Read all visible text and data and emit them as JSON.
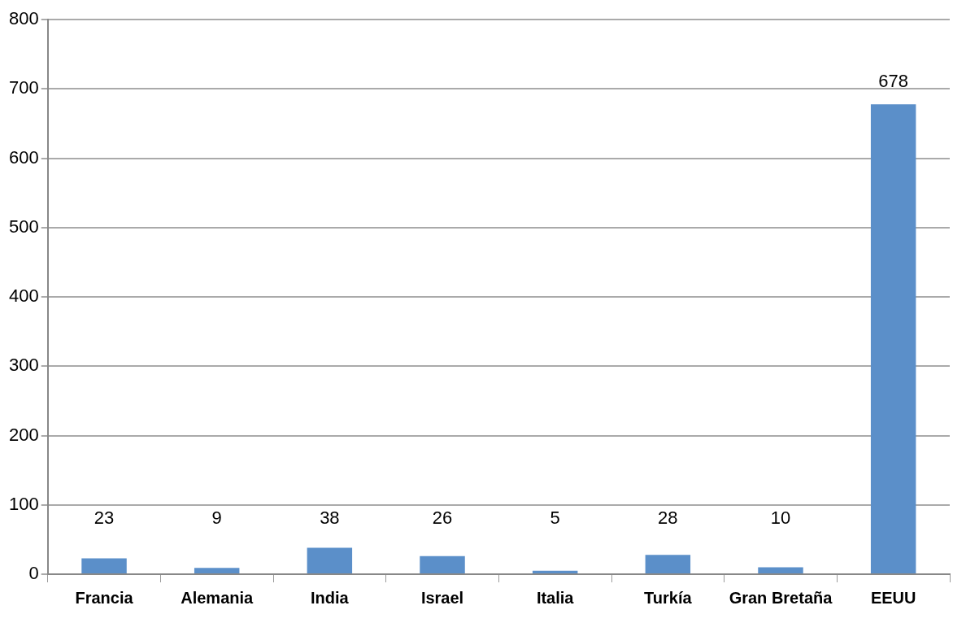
{
  "chart_data": {
    "type": "bar",
    "categories": [
      "Francia",
      "Alemania",
      "India",
      "Israel",
      "Italia",
      "Turkía",
      "Gran Bretaña",
      "EEUU"
    ],
    "values": [
      23,
      9,
      38,
      26,
      5,
      28,
      10,
      678
    ],
    "color": "#5b8fc9",
    "ylim": [
      0,
      800
    ],
    "yticks": [
      0,
      100,
      200,
      300,
      400,
      500,
      600,
      700,
      800
    ],
    "grid": "y",
    "data_labels": true,
    "legend": false
  }
}
